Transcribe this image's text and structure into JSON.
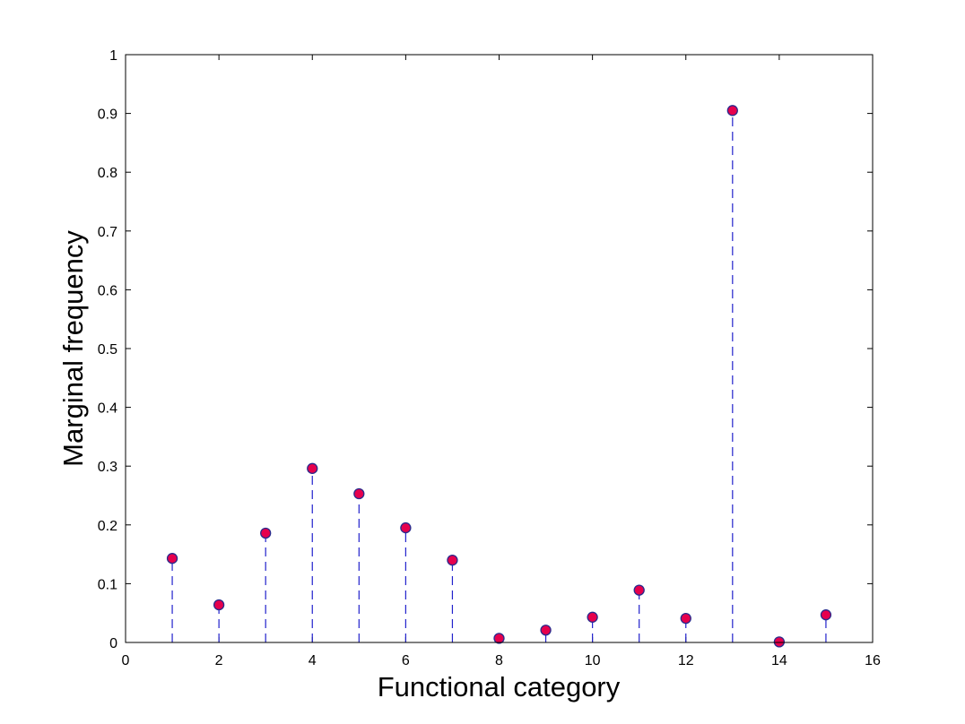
{
  "chart_data": {
    "type": "scatter",
    "style": "stem",
    "title": "",
    "xlabel": "Functional category",
    "ylabel": "Marginal frequency",
    "xlim": [
      0,
      16
    ],
    "ylim": [
      0,
      1
    ],
    "xticks": [
      0,
      2,
      4,
      6,
      8,
      10,
      12,
      14,
      16
    ],
    "yticks": [
      0,
      0.1,
      0.2,
      0.3,
      0.4,
      0.5,
      0.6,
      0.7,
      0.8,
      0.9,
      1
    ],
    "xtick_labels": [
      "0",
      "2",
      "4",
      "6",
      "8",
      "10",
      "12",
      "14",
      "16"
    ],
    "ytick_labels": [
      "0",
      "0.1",
      "0.2",
      "0.3",
      "0.4",
      "0.5",
      "0.6",
      "0.7",
      "0.8",
      "0.9",
      "1"
    ],
    "grid": false,
    "x": [
      1,
      2,
      3,
      4,
      5,
      6,
      7,
      8,
      9,
      10,
      11,
      12,
      13,
      14,
      15
    ],
    "y": [
      0.143,
      0.064,
      0.186,
      0.296,
      0.253,
      0.195,
      0.14,
      0.007,
      0.021,
      0.043,
      0.089,
      0.041,
      0.905,
      0.001,
      0.047
    ],
    "colors": {
      "marker_fill": "#e6004d",
      "marker_edge": "#2a2a8c",
      "stem": "#2222cc",
      "axes": "#000000"
    }
  }
}
